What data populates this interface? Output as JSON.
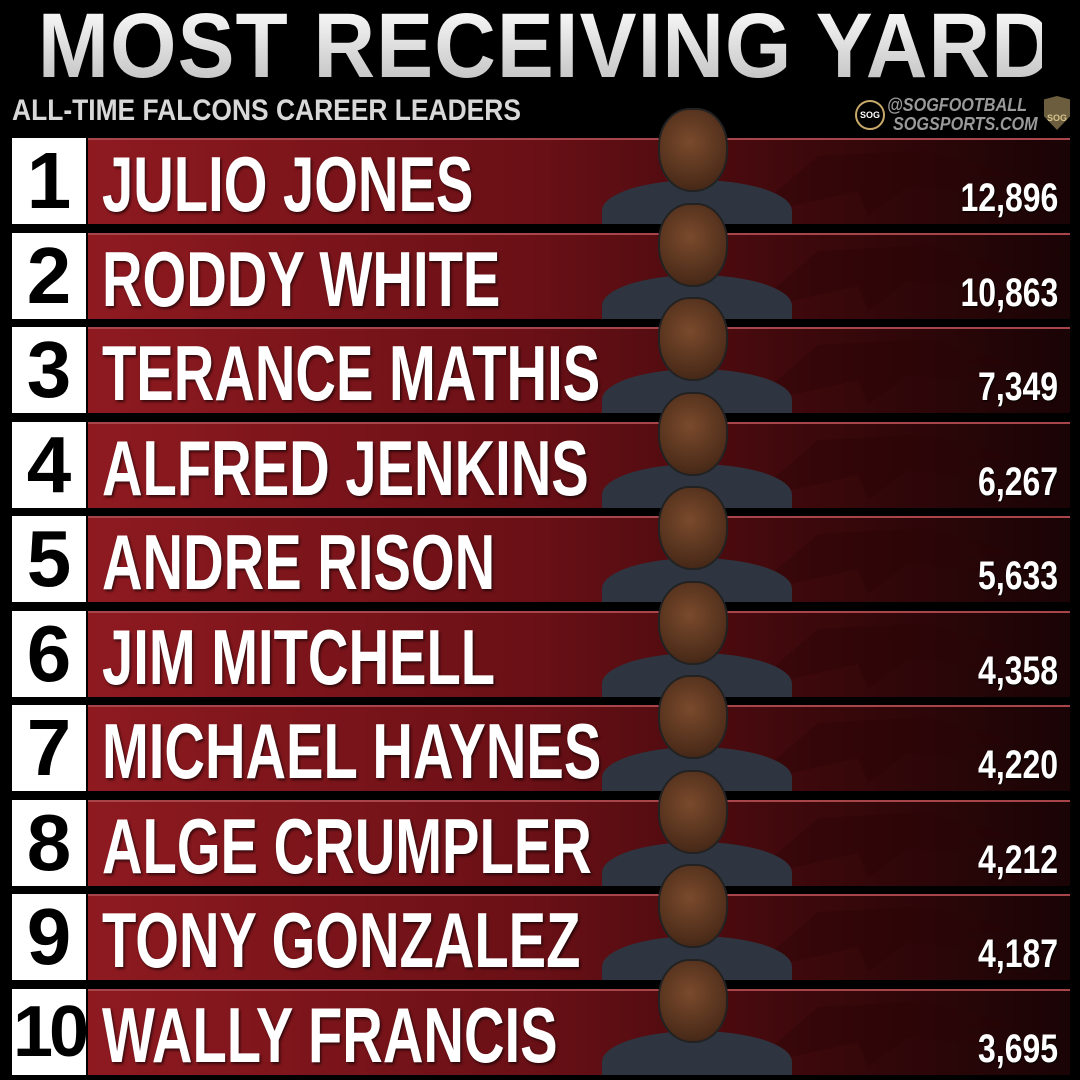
{
  "header": {
    "title": "MOST RECEIVING YARDS",
    "subtitle": "ALL-TIME FALCONS CAREER LEADERS",
    "brand_handle": "@SOGFOOTBALL",
    "brand_site": "SOGSPORTS.COM",
    "brand_logo": "SOG"
  },
  "colors": {
    "bar_red": "#8e1a20",
    "rank_box": "#ffffff",
    "background": "#000000"
  },
  "leaders": [
    {
      "rank": "1",
      "name": "JULIO JONES",
      "yards": "12,896"
    },
    {
      "rank": "2",
      "name": "RODDY WHITE",
      "yards": "10,863"
    },
    {
      "rank": "3",
      "name": "TERANCE MATHIS",
      "yards": "7,349"
    },
    {
      "rank": "4",
      "name": "ALFRED JENKINS",
      "yards": "6,267"
    },
    {
      "rank": "5",
      "name": "ANDRE RISON",
      "yards": "5,633"
    },
    {
      "rank": "6",
      "name": "JIM MITCHELL",
      "yards": "4,358"
    },
    {
      "rank": "7",
      "name": "MICHAEL HAYNES",
      "yards": "4,220"
    },
    {
      "rank": "8",
      "name": "ALGE CRUMPLER",
      "yards": "4,212"
    },
    {
      "rank": "9",
      "name": "TONY GONZALEZ",
      "yards": "4,187"
    },
    {
      "rank": "10",
      "name": "WALLY FRANCIS",
      "yards": "3,695"
    }
  ]
}
